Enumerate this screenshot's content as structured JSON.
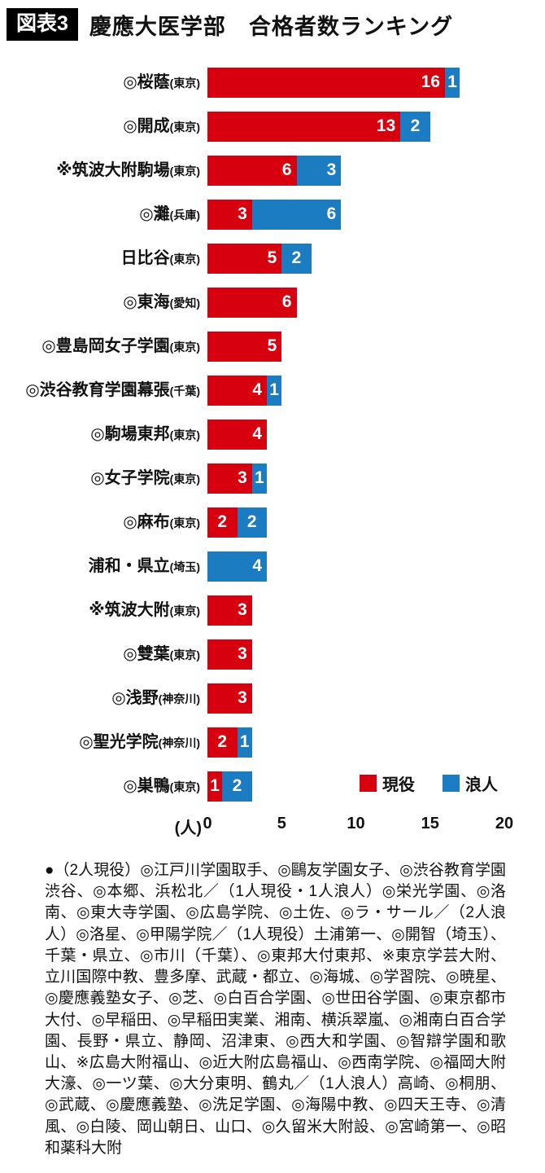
{
  "header": {
    "badge": "図表3",
    "title": "慶應大医学部　合格者数ランキング"
  },
  "chart_data": {
    "type": "bar",
    "orientation": "horizontal",
    "stacked": true,
    "title": "慶應大医学部　合格者数ランキング",
    "xlabel": "(人)",
    "xlim": [
      0,
      20
    ],
    "ticks": [
      0,
      5,
      10,
      15,
      20
    ],
    "grid": false,
    "legend_position": "bottom-right",
    "categories": [
      {
        "name": "◎桜蔭",
        "location": "(東京)"
      },
      {
        "name": "◎開成",
        "location": "(東京)"
      },
      {
        "name": "※筑波大附駒場",
        "location": "(東京)"
      },
      {
        "name": "◎灘",
        "location": "(兵庫)"
      },
      {
        "name": "日比谷",
        "location": "(東京)"
      },
      {
        "name": "◎東海",
        "location": "(愛知)"
      },
      {
        "name": "◎豊島岡女子学園",
        "location": "(東京)"
      },
      {
        "name": "◎渋谷教育学園幕張",
        "location": "(千葉)"
      },
      {
        "name": "◎駒場東邦",
        "location": "(東京)"
      },
      {
        "name": "◎女子学院",
        "location": "(東京)"
      },
      {
        "name": "◎麻布",
        "location": "(東京)"
      },
      {
        "name": "浦和・県立",
        "location": "(埼玉)"
      },
      {
        "name": "※筑波大附",
        "location": "(東京)"
      },
      {
        "name": "◎雙葉",
        "location": "(東京)"
      },
      {
        "name": "◎浅野",
        "location": "(神奈川)"
      },
      {
        "name": "◎聖光学院",
        "location": "(神奈川)"
      },
      {
        "name": "◎巣鴨",
        "location": "(東京)"
      }
    ],
    "series": [
      {
        "name": "現役",
        "color": "#d7000f",
        "values": [
          16,
          13,
          6,
          3,
          5,
          6,
          5,
          4,
          4,
          3,
          2,
          0,
          3,
          3,
          3,
          2,
          1
        ]
      },
      {
        "name": "浪人",
        "color": "#1b7cc2",
        "values": [
          1,
          2,
          3,
          6,
          2,
          0,
          0,
          1,
          0,
          1,
          2,
          4,
          0,
          0,
          0,
          1,
          2
        ]
      }
    ]
  },
  "footnote": "●（2人現役）◎江戸川学園取手、◎鷗友学園女子、◎渋谷教育学園渋谷、◎本郷、浜松北／（1人現役・1人浪人）◎栄光学園、◎洛南、◎東大寺学園、◎広島学院、◎土佐、◎ラ・サール／（2人浪人）◎洛星、◎甲陽学院／（1人現役）土浦第一、◎開智（埼玉）、千葉・県立、◎市川（千葉）、◎東邦大付東邦、※東京学芸大附、立川国際中教、豊多摩、武蔵・都立、◎海城、◎学習院、◎暁星、◎慶應義塾女子、◎芝、◎白百合学園、◎世田谷学園、◎東京都市大付、◎早稲田、◎早稲田実業、湘南、横浜翠嵐、◎湘南白百合学園、長野・県立、静岡、沼津東、◎西大和学園、◎智辯学園和歌山、※広島大附福山、◎近大附広島福山、◎西南学院、◎福岡大附大濠、◎一ツ葉、◎大分東明、鶴丸／（1人浪人）高崎、◎桐朋、◎武蔵、◎慶應義塾、◎洗足学園、◎海陽中教、◎四天王寺、◎清風、◎白陵、岡山朝日、山口、◎久留米大附設、◎宮崎第一、◎昭和薬科大附"
}
